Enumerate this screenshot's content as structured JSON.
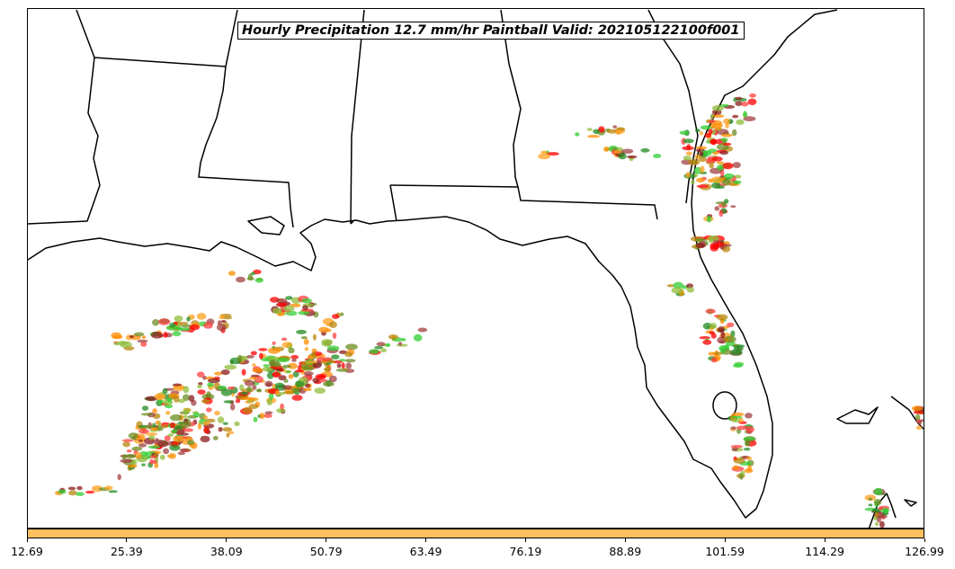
{
  "title": "Hourly Precipitation 12.7 mm/hr Paintball Valid: 202105122100f001",
  "colorbar": {
    "color": "#ffc060",
    "ticks": [
      "12.69",
      "25.39",
      "38.09",
      "50.79",
      "63.49",
      "76.19",
      "88.89",
      "101.59",
      "114.29",
      "126.99"
    ]
  },
  "map": {
    "background": "#ffffff",
    "boundary_color": "#000000",
    "paintball_colors": [
      "#ff8c00",
      "#ffa020",
      "#ff0000",
      "#ff4040",
      "#8b1a1a",
      "#a04040",
      "#6b8e23",
      "#8fbc3a",
      "#228b22",
      "#32cd32",
      "#b8860b"
    ]
  }
}
